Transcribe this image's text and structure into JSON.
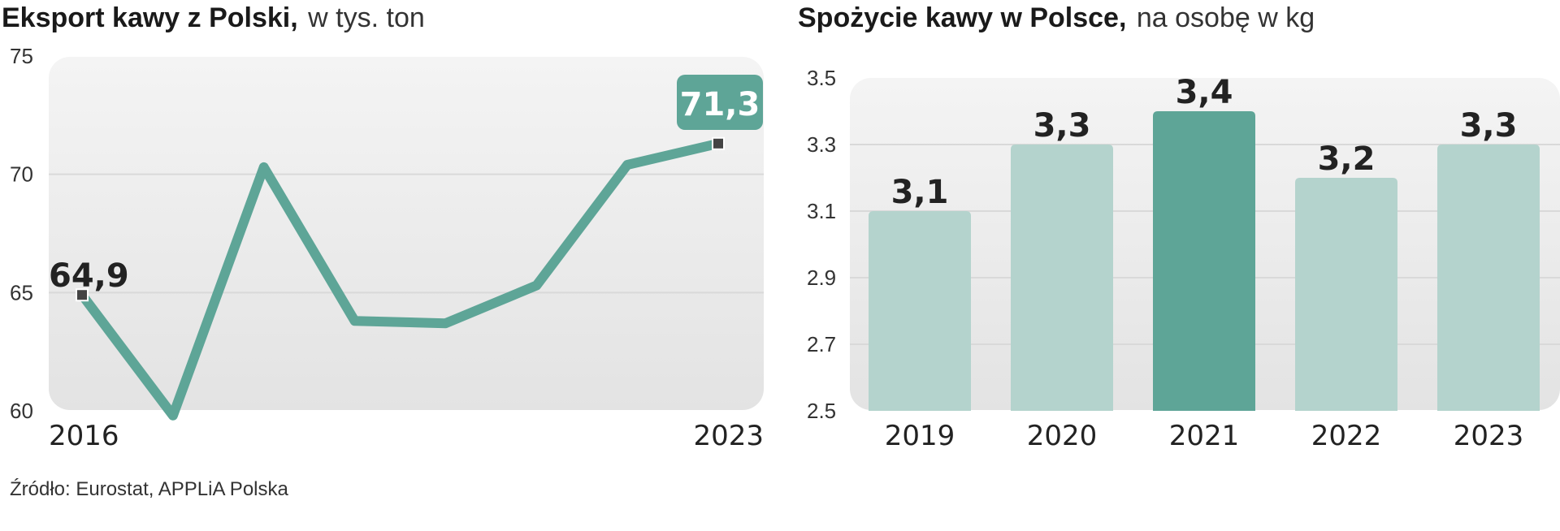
{
  "colors": {
    "accent": "#5ea597",
    "bar_light": "#b4d3cd",
    "panel_top": "#f4f4f4",
    "panel_bottom": "#e4e4e4",
    "grid": "#d9d9d9",
    "marker": "#444444"
  },
  "source": "Źródło: Eurostat, APPLiA Polska",
  "chart_data": [
    {
      "type": "line",
      "title_bold": "Eksport kawy z Polski,",
      "title_light": "w tys. ton",
      "x": [
        2016,
        2017,
        2018,
        2019,
        2020,
        2021,
        2022,
        2023
      ],
      "x_tick_labels": [
        "2016",
        "2023"
      ],
      "values": [
        64.9,
        59.8,
        70.3,
        63.8,
        63.7,
        65.3,
        70.4,
        71.3
      ],
      "labeled_points": [
        {
          "index": 0,
          "label": "64,9"
        },
        {
          "index": 7,
          "label": "71,3"
        }
      ],
      "yticks": [
        60,
        65,
        70,
        75
      ],
      "ylim": [
        60,
        75
      ],
      "grid": true
    },
    {
      "type": "bar",
      "title_bold": "Spożycie kawy w Polsce,",
      "title_light": "na osobę w kg",
      "categories": [
        "2019",
        "2020",
        "2021",
        "2022",
        "2023"
      ],
      "values": [
        3.1,
        3.3,
        3.4,
        3.2,
        3.3
      ],
      "value_labels": [
        "3,1",
        "3,3",
        "3,4",
        "3,2",
        "3,3"
      ],
      "highlight_index": 2,
      "yticks": [
        "2.5",
        "2.7",
        "2.9",
        "3.1",
        "3.3",
        "3.5"
      ],
      "ylim": [
        2.5,
        3.5
      ],
      "grid": true
    }
  ]
}
